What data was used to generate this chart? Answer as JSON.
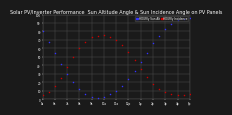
{
  "title": "Solar PV/Inverter Performance  Sun Altitude Angle & Sun Incidence Angle on PV Panels",
  "title_fontsize": 3.5,
  "bg_color": "#1a1a1a",
  "plot_bg_color": "#1a1a1a",
  "grid_color": "#555555",
  "text_color": "#ffffff",
  "series": [
    {
      "label": "HOURly Sun Alt",
      "color": "#3333ff",
      "points": [
        [
          0,
          80
        ],
        [
          0.5,
          68
        ],
        [
          1.0,
          55
        ],
        [
          1.5,
          42
        ],
        [
          2.0,
          30
        ],
        [
          2.5,
          20
        ],
        [
          3.0,
          12
        ],
        [
          3.5,
          6
        ],
        [
          4.0,
          3
        ],
        [
          4.5,
          2
        ],
        [
          5.0,
          3
        ],
        [
          5.5,
          6
        ],
        [
          6.0,
          10
        ],
        [
          6.5,
          16
        ],
        [
          7.0,
          24
        ],
        [
          7.5,
          33
        ],
        [
          8.0,
          44
        ],
        [
          8.5,
          55
        ],
        [
          9.0,
          66
        ],
        [
          9.5,
          75
        ],
        [
          10.0,
          83
        ],
        [
          10.5,
          89
        ],
        [
          11.0,
          93
        ],
        [
          11.5,
          95
        ],
        [
          12.0,
          96
        ]
      ]
    },
    {
      "label": "HOURly Incidence",
      "color": "#cc0000",
      "points": [
        [
          0,
          5
        ],
        [
          0.5,
          8
        ],
        [
          1.0,
          15
        ],
        [
          1.5,
          25
        ],
        [
          2.0,
          38
        ],
        [
          2.5,
          50
        ],
        [
          3.0,
          60
        ],
        [
          3.5,
          68
        ],
        [
          4.0,
          73
        ],
        [
          4.5,
          75
        ],
        [
          5.0,
          76
        ],
        [
          5.5,
          74
        ],
        [
          6.0,
          70
        ],
        [
          6.5,
          64
        ],
        [
          7.0,
          56
        ],
        [
          7.5,
          46
        ],
        [
          8.0,
          36
        ],
        [
          8.5,
          26
        ],
        [
          9.0,
          18
        ],
        [
          9.5,
          12
        ],
        [
          10.0,
          8
        ],
        [
          10.5,
          6
        ],
        [
          11.0,
          5
        ],
        [
          11.5,
          5
        ],
        [
          12.0,
          6
        ]
      ]
    }
  ],
  "xlim": [
    0,
    12
  ],
  "ylim": [
    0,
    100
  ],
  "xtick_positions": [
    0,
    1,
    2,
    3,
    4,
    5,
    6,
    7,
    8,
    9,
    10,
    11,
    12
  ],
  "xtick_labels": [
    "5a",
    "6a",
    "7a",
    "8a",
    "9a",
    "10a",
    "11a",
    "12p",
    "1p",
    "2p",
    "3p",
    "4p",
    "5p"
  ],
  "ytick_positions": [
    0,
    10,
    20,
    30,
    40,
    50,
    60,
    70,
    80,
    90,
    100
  ],
  "ytick_labels": [
    "0",
    "10",
    "20",
    "30",
    "40",
    "50",
    "60",
    "70",
    "80",
    "90",
    "100"
  ],
  "legend_labels": [
    "HOURly Sun Alt",
    "HOURly Incidence"
  ],
  "legend_colors": [
    "#3333ff",
    "#cc0000"
  ]
}
